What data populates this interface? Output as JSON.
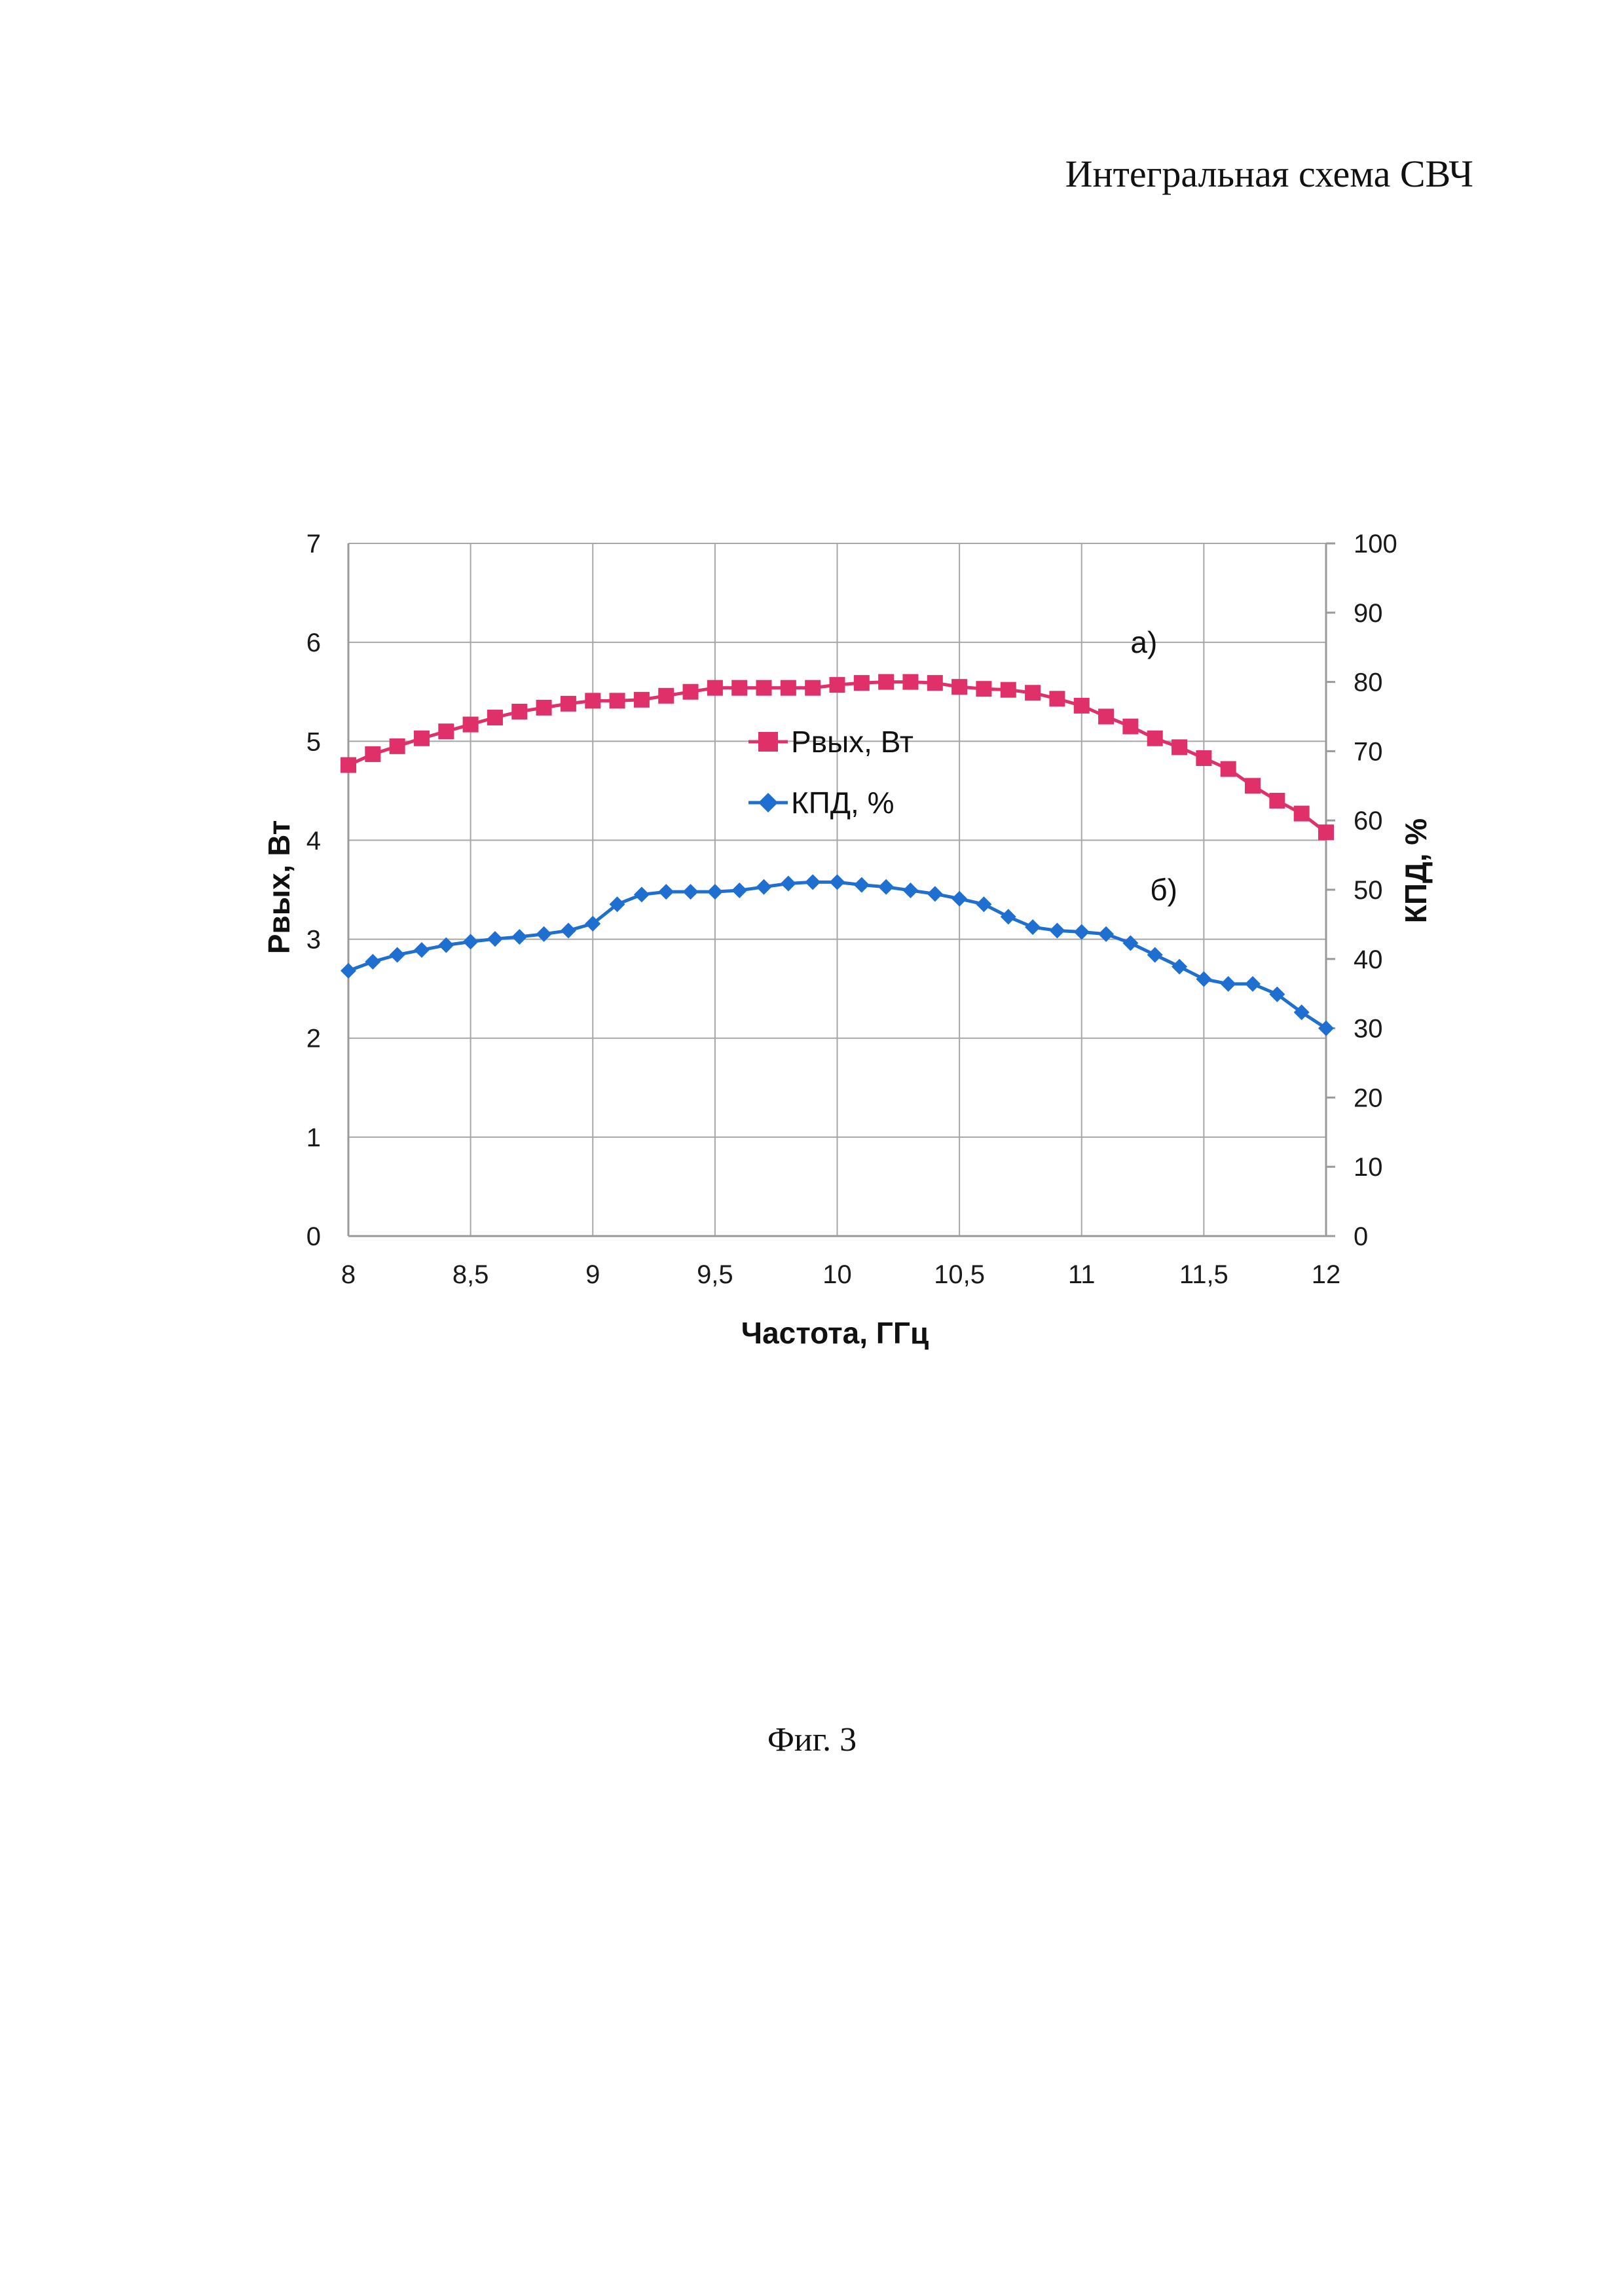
{
  "page": {
    "header_title": "Интегральная схема СВЧ",
    "figure_caption": "Фиг. 3"
  },
  "chart_data": {
    "type": "line",
    "title": "",
    "xlabel": "Частота, ГГц",
    "ylabel": "Рвых, Вт",
    "y2label": "КПД, %",
    "xlim": [
      8,
      12
    ],
    "ylim": [
      0,
      7
    ],
    "y2lim": [
      0,
      100
    ],
    "x_ticks": [
      "8",
      "8,5",
      "9",
      "9,5",
      "10",
      "10,5",
      "11",
      "11,5",
      "12"
    ],
    "y_ticks": [
      "0",
      "1",
      "2",
      "3",
      "4",
      "5",
      "6",
      "7"
    ],
    "y2_ticks": [
      "0",
      "10",
      "20",
      "30",
      "40",
      "50",
      "60",
      "70",
      "80",
      "90",
      "100"
    ],
    "grid": true,
    "legend_position": "center",
    "x": [
      8.0,
      8.1,
      8.2,
      8.3,
      8.4,
      8.5,
      8.6,
      8.7,
      8.8,
      8.9,
      9.0,
      9.1,
      9.2,
      9.3,
      9.4,
      9.5,
      9.6,
      9.7,
      9.8,
      9.9,
      10.0,
      10.1,
      10.2,
      10.3,
      10.4,
      10.5,
      10.6,
      10.7,
      10.8,
      10.9,
      11.0,
      11.1,
      11.2,
      11.3,
      11.4,
      11.5,
      11.6,
      11.7,
      11.8,
      11.9,
      12.0
    ],
    "series": [
      {
        "name": "Рвых, Вт",
        "axis": "left",
        "color": "#e0306a",
        "marker": "square",
        "values": [
          4.76,
          4.87,
          4.95,
          5.03,
          5.1,
          5.17,
          5.24,
          5.3,
          5.34,
          5.38,
          5.41,
          5.41,
          5.42,
          5.46,
          5.5,
          5.54,
          5.54,
          5.54,
          5.54,
          5.54,
          5.57,
          5.59,
          5.6,
          5.6,
          5.59,
          5.55,
          5.53,
          5.52,
          5.49,
          5.43,
          5.36,
          5.25,
          5.15,
          5.03,
          4.94,
          4.83,
          4.72,
          4.55,
          4.4,
          4.27,
          4.08
        ]
      },
      {
        "name": "КПД, %",
        "axis": "right",
        "color": "#1f6fd1",
        "marker": "diamond",
        "values": [
          38.3,
          39.6,
          40.6,
          41.3,
          42.0,
          42.5,
          42.9,
          43.2,
          43.6,
          44.1,
          45.1,
          47.9,
          49.3,
          49.7,
          49.7,
          49.7,
          49.9,
          50.4,
          50.9,
          51.1,
          51.1,
          50.7,
          50.4,
          49.9,
          49.4,
          48.7,
          47.9,
          46.1,
          44.6,
          44.1,
          43.9,
          43.6,
          42.3,
          40.6,
          38.9,
          37.1,
          36.4,
          36.4,
          34.9,
          32.3,
          30.0
        ]
      }
    ],
    "annotations": [
      {
        "text": "а)",
        "x": 11.2,
        "y": 6.0,
        "axis": "left"
      },
      {
        "text": "б)",
        "x": 11.28,
        "y": 3.5,
        "axis": "left"
      }
    ]
  }
}
